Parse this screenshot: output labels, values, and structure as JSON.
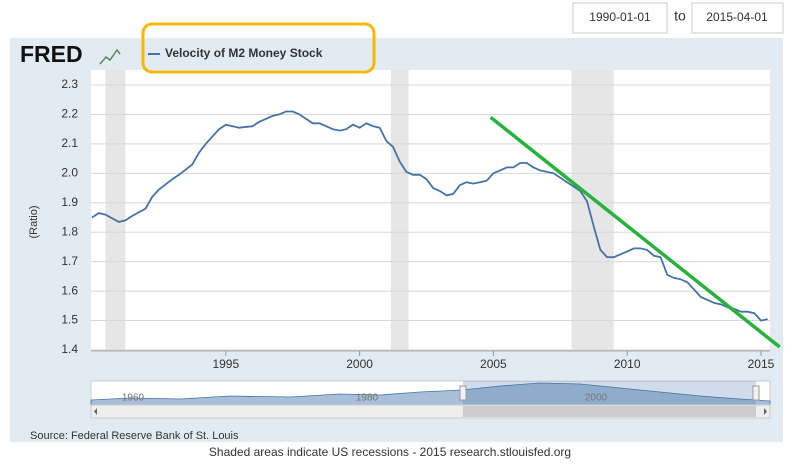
{
  "date_range": {
    "start": "1990-01-01",
    "separator": "to",
    "end": "2015-04-01"
  },
  "logo": "FRED",
  "chart_data": {
    "type": "line",
    "y_label": "(Ratio)",
    "x": [
      1990,
      1990.25,
      1990.5,
      1991,
      1991.25,
      1991.5,
      1992,
      1992.25,
      1992.5,
      1993,
      1993.25,
      1993.75,
      1994,
      1994.25,
      1994.75,
      1995,
      1995.25,
      1995.5,
      1996,
      1996.25,
      1996.5,
      1996.75,
      1997,
      1997.25,
      1997.5,
      1997.75,
      1998,
      1998.25,
      1998.5,
      1998.75,
      1999,
      1999.25,
      1999.5,
      1999.75,
      2000,
      2000.25,
      2000.5,
      2000.75,
      2001,
      2001.25,
      2001.5,
      2001.75,
      2002,
      2002.25,
      2002.5,
      2002.75,
      2003,
      2003.25,
      2003.5,
      2003.75,
      2004,
      2004.25,
      2004.5,
      2004.75,
      2005,
      2005.25,
      2005.5,
      2005.75,
      2006,
      2006.25,
      2006.5,
      2006.75,
      2007,
      2007.25,
      2007.5,
      2007.75,
      2008,
      2008.25,
      2008.5,
      2008.75,
      2009,
      2009.25,
      2009.5,
      2009.75,
      2010,
      2010.25,
      2010.5,
      2010.75,
      2011,
      2011.25,
      2011.5,
      2011.75,
      2012,
      2012.25,
      2012.5,
      2012.75,
      2013,
      2013.25,
      2013.5,
      2013.75,
      2014,
      2014.25,
      2014.5,
      2014.75,
      2015,
      2015.25
    ],
    "series": [
      {
        "name": "Velocity of M2 Money Stock",
        "color": "#4572a7",
        "values": [
          1.85,
          1.865,
          1.86,
          1.835,
          1.84,
          1.855,
          1.88,
          1.92,
          1.945,
          1.98,
          1.995,
          2.03,
          2.07,
          2.1,
          2.15,
          2.165,
          2.16,
          2.155,
          2.16,
          2.175,
          2.185,
          2.195,
          2.2,
          2.21,
          2.21,
          2.2,
          2.185,
          2.17,
          2.17,
          2.16,
          2.15,
          2.145,
          2.15,
          2.165,
          2.155,
          2.17,
          2.16,
          2.155,
          2.11,
          2.09,
          2.04,
          2.005,
          1.995,
          1.995,
          1.98,
          1.95,
          1.94,
          1.925,
          1.93,
          1.96,
          1.97,
          1.965,
          1.97,
          1.975,
          2.0,
          2.01,
          2.02,
          2.02,
          2.035,
          2.035,
          2.02,
          2.01,
          2.005,
          2.0,
          1.985,
          1.97,
          1.955,
          1.94,
          1.905,
          1.82,
          1.74,
          1.715,
          1.715,
          1.725,
          1.735,
          1.745,
          1.745,
          1.74,
          1.72,
          1.715,
          1.655,
          1.645,
          1.64,
          1.63,
          1.605,
          1.58,
          1.57,
          1.56,
          1.555,
          1.545,
          1.54,
          1.53,
          1.53,
          1.525,
          1.5,
          1.505
        ]
      }
    ],
    "recessions": [
      [
        1990.5,
        1991.25
      ],
      [
        2001.17,
        2001.83
      ],
      [
        2007.92,
        2009.5
      ]
    ],
    "recession_color": "#e6e6e6",
    "trend_line": {
      "x": [
        2004.9,
        2015.7
      ],
      "values": [
        2.19,
        1.41
      ],
      "color": "#27b23c"
    },
    "xlim": [
      1990,
      2015.3
    ],
    "xticks": [
      1995,
      2000,
      2005,
      2010,
      2015
    ],
    "ylim": [
      1.4,
      2.3
    ],
    "yticks": [
      1.4,
      1.5,
      1.6,
      1.7,
      1.8,
      1.9,
      {
        "value": 2,
        "label": "2.0"
      },
      2.1,
      2.2,
      2.3
    ],
    "grid": true,
    "navigator_labels": [
      "1960",
      "1980",
      "2000"
    ],
    "source": "Source: Federal Reserve Bank of St. Louis",
    "footer": "Shaded areas indicate US recessions - 2015 research.stlouisfed.org"
  }
}
